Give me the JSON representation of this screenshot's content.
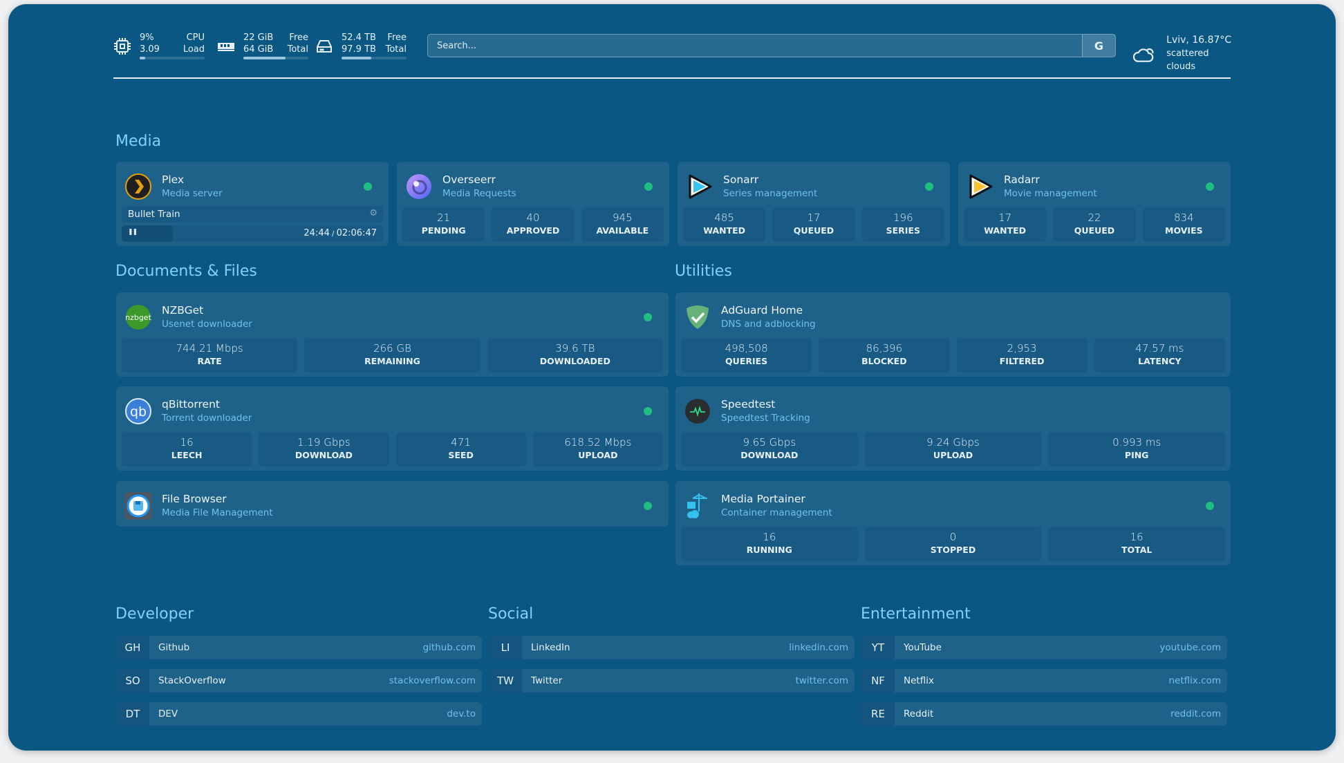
{
  "header": {
    "cpu": {
      "value": "9%",
      "load": "3.09",
      "label1": "CPU",
      "label2": "Load",
      "fill_percent": 9
    },
    "memory": {
      "free": "22 GiB",
      "total": "64 GiB",
      "label1": "Free",
      "label2": "Total",
      "fill_percent": 65
    },
    "disk": {
      "free": "52.4 TB",
      "total": "97.9 TB",
      "label1": "Free",
      "label2": "Total",
      "fill_percent": 46
    },
    "search": {
      "placeholder": "Search...",
      "engine_label": "G"
    },
    "weather": {
      "location_temp": "Lviv, 16.87°C",
      "condition": "scattered clouds",
      "icon": "cloud-sun-icon"
    }
  },
  "colors": {
    "background": "#0a5783",
    "card": "#1e6189",
    "heading": "#7fd3f7",
    "status_up": "#1fbf7f"
  },
  "sections": {
    "media": "Media",
    "documents": "Documents & Files",
    "utilities": "Utilities",
    "developer": "Developer",
    "social": "Social",
    "entertainment": "Entertainment"
  },
  "services": {
    "plex": {
      "name": "Plex",
      "desc": "Media server",
      "icon": "plex-icon",
      "status": "up",
      "now_playing": {
        "title": "Bullet Train",
        "position": "24:44",
        "duration": "02:06:47",
        "progress_percent": 19.5
      }
    },
    "overseerr": {
      "name": "Overseerr",
      "desc": "Media Requests",
      "icon": "overseerr-icon",
      "status": "up",
      "stats": [
        {
          "value": "21",
          "label": "PENDING"
        },
        {
          "value": "40",
          "label": "APPROVED"
        },
        {
          "value": "945",
          "label": "AVAILABLE"
        }
      ]
    },
    "sonarr": {
      "name": "Sonarr",
      "desc": "Series management",
      "icon": "sonarr-icon",
      "status": "up",
      "stats": [
        {
          "value": "485",
          "label": "WANTED"
        },
        {
          "value": "17",
          "label": "QUEUED"
        },
        {
          "value": "196",
          "label": "SERIES"
        }
      ]
    },
    "radarr": {
      "name": "Radarr",
      "desc": "Movie management",
      "icon": "radarr-icon",
      "status": "up",
      "stats": [
        {
          "value": "17",
          "label": "WANTED"
        },
        {
          "value": "22",
          "label": "QUEUED"
        },
        {
          "value": "834",
          "label": "MOVIES"
        }
      ]
    },
    "nzbget": {
      "name": "NZBGet",
      "desc": "Usenet downloader",
      "icon": "nzbget-icon",
      "icon_text": "nzbget",
      "status": "up",
      "stats": [
        {
          "value": "744.21 Mbps",
          "label": "RATE"
        },
        {
          "value": "266 GB",
          "label": "REMAINING"
        },
        {
          "value": "39.6 TB",
          "label": "DOWNLOADED"
        }
      ]
    },
    "qbittorrent": {
      "name": "qBittorrent",
      "desc": "Torrent downloader",
      "icon": "qbittorrent-icon",
      "icon_text": "qb",
      "status": "up",
      "stats": [
        {
          "value": "16",
          "label": "LEECH"
        },
        {
          "value": "1.19 Gbps",
          "label": "DOWNLOAD"
        },
        {
          "value": "471",
          "label": "SEED"
        },
        {
          "value": "618.52 Mbps",
          "label": "UPLOAD"
        }
      ]
    },
    "filebrowser": {
      "name": "File Browser",
      "desc": "Media File Management",
      "icon": "file-browser-icon",
      "status": "up"
    },
    "adguard": {
      "name": "AdGuard Home",
      "desc": "DNS and adblocking",
      "icon": "adguard-shield-icon",
      "stats": [
        {
          "value": "498,508",
          "label": "QUERIES"
        },
        {
          "value": "86,396",
          "label": "BLOCKED"
        },
        {
          "value": "2,953",
          "label": "FILTERED"
        },
        {
          "value": "47.57 ms",
          "label": "LATENCY"
        }
      ]
    },
    "speedtest": {
      "name": "Speedtest",
      "desc": "Speedtest Tracking",
      "icon": "speedtest-pulse-icon",
      "stats": [
        {
          "value": "9.65 Gbps",
          "label": "DOWNLOAD"
        },
        {
          "value": "9.24 Gbps",
          "label": "UPLOAD"
        },
        {
          "value": "0.993 ms",
          "label": "PING"
        }
      ]
    },
    "portainer": {
      "name": "Media Portainer",
      "desc": "Container management",
      "icon": "portainer-icon",
      "status": "up",
      "stats": [
        {
          "value": "16",
          "label": "RUNNING"
        },
        {
          "value": "0",
          "label": "STOPPED"
        },
        {
          "value": "16",
          "label": "TOTAL"
        }
      ]
    }
  },
  "bookmarks": {
    "developer": [
      {
        "abbr": "GH",
        "name": "Github",
        "url": "github.com"
      },
      {
        "abbr": "SO",
        "name": "StackOverflow",
        "url": "stackoverflow.com"
      },
      {
        "abbr": "DT",
        "name": "DEV",
        "url": "dev.to"
      }
    ],
    "social": [
      {
        "abbr": "LI",
        "name": "LinkedIn",
        "url": "linkedin.com"
      },
      {
        "abbr": "TW",
        "name": "Twitter",
        "url": "twitter.com"
      }
    ],
    "entertainment": [
      {
        "abbr": "YT",
        "name": "YouTube",
        "url": "youtube.com"
      },
      {
        "abbr": "NF",
        "name": "Netflix",
        "url": "netflix.com"
      },
      {
        "abbr": "RE",
        "name": "Reddit",
        "url": "reddit.com"
      }
    ]
  }
}
